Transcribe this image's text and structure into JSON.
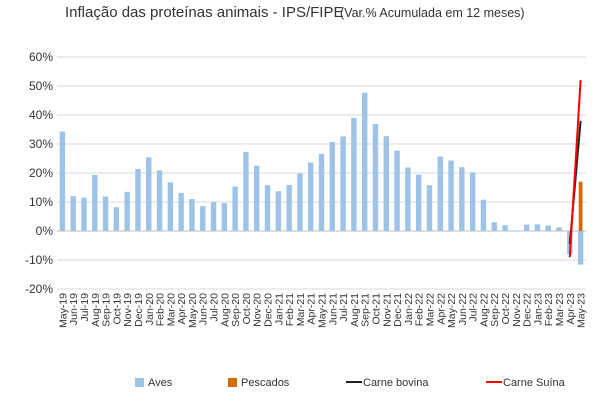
{
  "chart_data": {
    "type": "bar",
    "title": "Inflação das proteínas animais - IPS/FIPE",
    "subtitle": "(Var.%  Acumulada em 12 meses)",
    "ylim": [
      -20,
      60
    ],
    "yticks": [
      -20,
      -10,
      0,
      10,
      20,
      30,
      40,
      50,
      60
    ],
    "ytick_labels": [
      "-20%",
      "-10%",
      "0%",
      "10%",
      "20%",
      "30%",
      "40%",
      "50%",
      "60%"
    ],
    "legend_position": "bottom",
    "grid": true,
    "categories": [
      "May-19",
      "Jun-19",
      "Jul-19",
      "Aug-19",
      "Sep-19",
      "Oct-19",
      "Nov-19",
      "Dec-19",
      "Jan-20",
      "Feb-20",
      "Mar-20",
      "Apr-20",
      "May-20",
      "Jun-20",
      "Jul-20",
      "Aug-20",
      "Sep-20",
      "Oct-20",
      "Nov-20",
      "Dec-20",
      "Jan-21",
      "Feb-21",
      "Mar-21",
      "Apr-21",
      "May-21",
      "Jun-21",
      "Jul-21",
      "Aug-21",
      "Sep-21",
      "Oct-21",
      "Nov-21",
      "Dec-21",
      "Jan-22",
      "Feb-22",
      "Mar-22",
      "Apr-22",
      "May-22",
      "Jun-22",
      "Jul-22",
      "Aug-22",
      "Sep-22",
      "Oct-22",
      "Nov-22",
      "Dec-22",
      "Jan-23",
      "Feb-23",
      "Mar-23",
      "Apr-23",
      "May-23"
    ],
    "series": [
      {
        "name": "Aves",
        "kind": "bar",
        "color": "#9dc3e6",
        "values": [
          34.3,
          12.0,
          11.5,
          19.3,
          11.9,
          8.2,
          13.5,
          21.4,
          25.4,
          20.9,
          16.8,
          13.1,
          11.0,
          8.6,
          10.0,
          9.6,
          15.3,
          27.3,
          22.5,
          15.8,
          13.7,
          15.9,
          19.8,
          23.6,
          26.6,
          30.7,
          32.6,
          39.0,
          47.7,
          36.9,
          32.7,
          27.7,
          21.9,
          19.4,
          15.8,
          25.7,
          24.3,
          22.0,
          20.2,
          10.8,
          3.0,
          2.0,
          0.2,
          2.2,
          2.3,
          1.9,
          1.3,
          -8.0,
          -11.6
        ]
      },
      {
        "name": "Pescados",
        "kind": "bar",
        "color": "#d46b08",
        "values": [
          null,
          null,
          null,
          null,
          null,
          null,
          null,
          null,
          null,
          null,
          null,
          null,
          null,
          null,
          null,
          null,
          null,
          null,
          null,
          null,
          null,
          null,
          null,
          null,
          null,
          null,
          null,
          null,
          null,
          null,
          null,
          null,
          null,
          null,
          null,
          null,
          null,
          null,
          null,
          null,
          null,
          null,
          null,
          null,
          null,
          null,
          null,
          null,
          17.0
        ]
      },
      {
        "name": "Carne bovina",
        "kind": "line",
        "color": "#222222",
        "values": [
          null,
          null,
          null,
          null,
          null,
          null,
          null,
          null,
          null,
          null,
          null,
          null,
          null,
          null,
          null,
          null,
          null,
          null,
          null,
          null,
          null,
          null,
          null,
          null,
          null,
          null,
          null,
          null,
          null,
          null,
          null,
          null,
          null,
          null,
          null,
          null,
          null,
          null,
          null,
          null,
          null,
          null,
          null,
          null,
          null,
          null,
          null,
          -4.5,
          38.0
        ]
      },
      {
        "name": "Carne Suína",
        "kind": "line",
        "color": "#ff0000",
        "values": [
          null,
          null,
          null,
          null,
          null,
          null,
          null,
          null,
          null,
          null,
          null,
          null,
          null,
          null,
          null,
          null,
          null,
          null,
          null,
          null,
          null,
          null,
          null,
          null,
          null,
          null,
          null,
          null,
          null,
          null,
          null,
          null,
          null,
          null,
          null,
          null,
          null,
          null,
          null,
          null,
          null,
          null,
          null,
          null,
          null,
          null,
          null,
          -9.0,
          52.0
        ]
      }
    ]
  }
}
